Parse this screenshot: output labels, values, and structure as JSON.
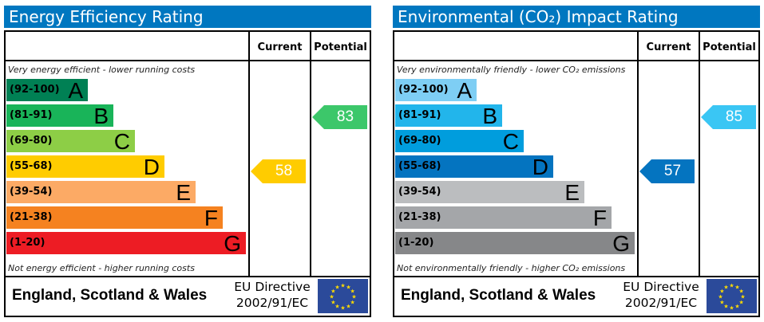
{
  "panels": [
    {
      "id": "energy",
      "title": "Energy Efficiency Rating",
      "current_label": "Current",
      "potential_label": "Potential",
      "top_note": "Very energy efficient - lower running costs",
      "bottom_note": "Not energy efficient - higher running costs",
      "bands": [
        {
          "range": "(92-100)",
          "letter": "A",
          "color": "#008054"
        },
        {
          "range": "(81-91)",
          "letter": "B",
          "color": "#19b459"
        },
        {
          "range": "(69-80)",
          "letter": "C",
          "color": "#8dce46"
        },
        {
          "range": "(55-68)",
          "letter": "D",
          "color": "#ffcc00"
        },
        {
          "range": "(39-54)",
          "letter": "E",
          "color": "#fcaa65"
        },
        {
          "range": "(21-38)",
          "letter": "F",
          "color": "#f58220"
        },
        {
          "range": "(1-20)",
          "letter": "G",
          "color": "#ed1c24"
        }
      ],
      "current": {
        "value": 58,
        "band": "D",
        "color": "#ffcc00"
      },
      "potential": {
        "value": 83,
        "band": "B",
        "color": "#3cc76a"
      },
      "region": "England, Scotland & Wales",
      "directive_line1": "EU Directive",
      "directive_line2": "2002/91/EC"
    },
    {
      "id": "environmental",
      "title": "Environmental (CO₂) Impact Rating",
      "current_label": "Current",
      "potential_label": "Potential",
      "top_note": "Very environmentally friendly - lower CO₂ emissions",
      "bottom_note": "Not environmentally friendly - higher CO₂ emissions",
      "bands": [
        {
          "range": "(92-100)",
          "letter": "A",
          "color": "#7ecef4"
        },
        {
          "range": "(81-91)",
          "letter": "B",
          "color": "#22b5eb"
        },
        {
          "range": "(69-80)",
          "letter": "C",
          "color": "#009ddd"
        },
        {
          "range": "(55-68)",
          "letter": "D",
          "color": "#0474c0"
        },
        {
          "range": "(39-54)",
          "letter": "E",
          "color": "#bbbdbf"
        },
        {
          "range": "(21-38)",
          "letter": "F",
          "color": "#a4a6a9"
        },
        {
          "range": "(1-20)",
          "letter": "G",
          "color": "#868789"
        }
      ],
      "current": {
        "value": 57,
        "band": "D",
        "color": "#0474c0"
      },
      "potential": {
        "value": 85,
        "band": "B",
        "color": "#3ac6f4"
      },
      "region": "England, Scotland & Wales",
      "directive_line1": "EU Directive",
      "directive_line2": "2002/91/EC"
    }
  ]
}
